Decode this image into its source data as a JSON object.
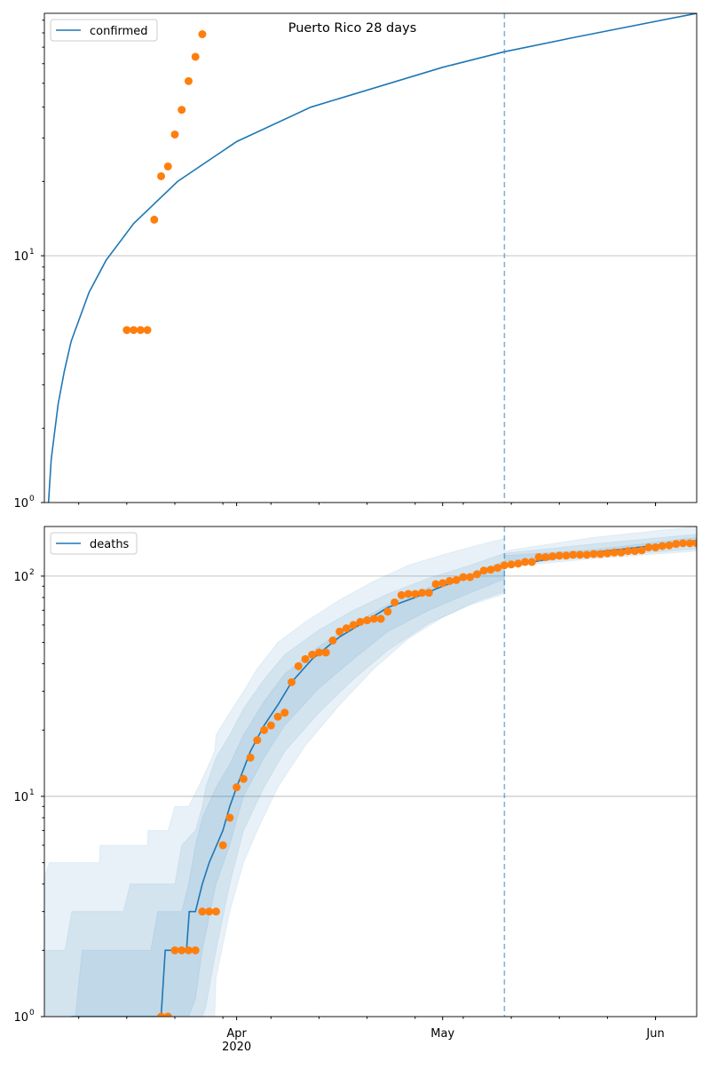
{
  "chart_data": [
    {
      "type": "scatter",
      "title": "Puerto Rico 28 days",
      "yscale": "log",
      "ylim": [
        1,
        96
      ],
      "xlim_dates": [
        "2020-03-04",
        "2020-06-07"
      ],
      "start_date": "2020-03-04",
      "x_ticks": [
        {
          "label": "Apr",
          "day": 28
        },
        {
          "label": "May",
          "day": 58
        },
        {
          "label": "Jun",
          "day": 89
        }
      ],
      "y_ticks": [
        {
          "label": "10",
          "sup": "0",
          "value": 1
        },
        {
          "label": "10",
          "sup": "1",
          "value": 10
        }
      ],
      "grid": "y-major",
      "legend": {
        "entries": [
          "confirmed"
        ],
        "placement": "top-left"
      },
      "forecast_start_day": 67,
      "model_line": {
        "name": "confirmed",
        "color": "#1f77b4",
        "points": [
          [
            0.6,
            1
          ],
          [
            1,
            1.5
          ],
          [
            2,
            2.5
          ],
          [
            2.9,
            3.4
          ],
          [
            3.9,
            4.5
          ],
          [
            6.5,
            7.1
          ],
          [
            9,
            9.6
          ],
          [
            13,
            13.5
          ],
          [
            19.4,
            20
          ],
          [
            28,
            29
          ],
          [
            38.8,
            40
          ],
          [
            58,
            58
          ],
          [
            66.9,
            67
          ],
          [
            77.5,
            77
          ],
          [
            95,
            96
          ]
        ]
      },
      "observed": {
        "color": "#ff7f0e",
        "first_day": 12,
        "values": [
          5,
          5,
          5,
          5,
          14,
          21,
          23,
          31,
          39,
          51,
          64,
          79
        ]
      }
    },
    {
      "type": "scatter",
      "yscale": "log",
      "ylim": [
        1,
        168
      ],
      "start_date": "2020-03-04",
      "x_ticks": [
        {
          "label": "Apr",
          "sub": "2020",
          "day": 28
        },
        {
          "label": "May",
          "day": 58
        },
        {
          "label": "Jun",
          "day": 89
        }
      ],
      "y_ticks": [
        {
          "label": "10",
          "sup": "0",
          "value": 1
        },
        {
          "label": "10",
          "sup": "1",
          "value": 10
        },
        {
          "label": "10",
          "sup": "2",
          "value": 100
        }
      ],
      "grid": "y-major",
      "legend": {
        "entries": [
          "deaths"
        ],
        "placement": "top-left"
      },
      "forecast_start_day": 67,
      "model_line": {
        "name": "deaths",
        "color": "#1f77b4",
        "points": [
          [
            3.9,
            1
          ],
          [
            17,
            1
          ],
          [
            17.6,
            2
          ],
          [
            20.7,
            2
          ],
          [
            21.1,
            3
          ],
          [
            22,
            3
          ],
          [
            23,
            4
          ],
          [
            24,
            5
          ],
          [
            26,
            7
          ],
          [
            27,
            9
          ],
          [
            28,
            11
          ],
          [
            30,
            16
          ],
          [
            32,
            21
          ],
          [
            34,
            26
          ],
          [
            36,
            33
          ],
          [
            39,
            42
          ],
          [
            43,
            53
          ],
          [
            47,
            63
          ],
          [
            50,
            72
          ],
          [
            54,
            80
          ],
          [
            58,
            90
          ],
          [
            62,
            100
          ],
          [
            67,
            110
          ],
          [
            77,
            125
          ],
          [
            95,
            145
          ]
        ]
      },
      "bands": [
        {
          "level": "outer",
          "points": [
            [
              0,
              1,
              4.3
            ],
            [
              0.7,
              1,
              5
            ],
            [
              8,
              1,
              5
            ],
            [
              8.1,
              1,
              6
            ],
            [
              15,
              1,
              6
            ],
            [
              15.1,
              1,
              7
            ],
            [
              18,
              1,
              7
            ],
            [
              19,
              1,
              9
            ],
            [
              21,
              1,
              9
            ],
            [
              23,
              1,
              12
            ],
            [
              24.8,
              1,
              16
            ],
            [
              25,
              1.5,
              19
            ],
            [
              27,
              3,
              24
            ],
            [
              29,
              5,
              30
            ],
            [
              31,
              7,
              38
            ],
            [
              34,
              11,
              50
            ],
            [
              38,
              17,
              62
            ],
            [
              43,
              26,
              78
            ],
            [
              48,
              38,
              95
            ],
            [
              53,
              52,
              112
            ],
            [
              58,
              65,
              125
            ],
            [
              63,
              77,
              138
            ],
            [
              67,
              85,
              148
            ],
            [
              67.01,
              110,
              130
            ],
            [
              80,
              120,
              150
            ],
            [
              95,
              130,
              168
            ]
          ]
        },
        {
          "level": "middle",
          "points": [
            [
              0,
              1,
              2
            ],
            [
              3,
              1,
              2
            ],
            [
              4,
              1,
              3
            ],
            [
              11.5,
              1,
              3
            ],
            [
              12.5,
              1,
              4
            ],
            [
              19,
              1,
              4
            ],
            [
              20,
              1,
              6
            ],
            [
              22,
              1,
              7
            ],
            [
              23,
              1,
              9
            ],
            [
              23.5,
              1.1,
              11
            ],
            [
              25,
              2,
              15
            ],
            [
              27,
              4,
              19
            ],
            [
              29,
              7,
              25
            ],
            [
              32,
              11,
              34
            ],
            [
              35,
              16,
              44
            ],
            [
              40,
              24,
              57
            ],
            [
              45,
              34,
              70
            ],
            [
              50,
              46,
              83
            ],
            [
              56,
              61,
              98
            ],
            [
              62,
              74,
              112
            ],
            [
              67,
              83,
              127
            ],
            [
              67.01,
              113,
              127
            ],
            [
              80,
              122,
              140
            ],
            [
              95,
              133,
              155
            ]
          ]
        },
        {
          "level": "inner",
          "points": [
            [
              4.5,
              1,
              1
            ],
            [
              5.5,
              1,
              2
            ],
            [
              15.5,
              1,
              2
            ],
            [
              16.5,
              1,
              3
            ],
            [
              20,
              1,
              3
            ],
            [
              21,
              1,
              4
            ],
            [
              22,
              1.2,
              6
            ],
            [
              23,
              2,
              8
            ],
            [
              25,
              4,
              11
            ],
            [
              27,
              6,
              14
            ],
            [
              29,
              10,
              19
            ],
            [
              32,
              15,
              27
            ],
            [
              35,
              21,
              36
            ],
            [
              40,
              31,
              48
            ],
            [
              45,
              42,
              61
            ],
            [
              50,
              56,
              74
            ],
            [
              56,
              70,
              89
            ],
            [
              62,
              84,
              102
            ],
            [
              67,
              97,
              117
            ],
            [
              67.01,
              117,
              124
            ],
            [
              80,
              125,
              132
            ],
            [
              95,
              140,
              150
            ]
          ]
        }
      ],
      "observed": {
        "color": "#ff7f0e",
        "first_day": 17,
        "values": [
          1,
          1,
          2,
          2,
          2,
          2,
          3,
          3,
          3,
          6,
          8,
          11,
          12,
          15,
          18,
          20,
          21,
          23,
          24,
          33,
          39,
          42,
          44,
          45,
          45,
          51,
          56,
          58,
          60,
          62,
          63,
          64,
          64,
          69,
          76,
          82,
          83,
          83,
          84,
          84,
          92,
          93,
          95,
          96,
          99,
          99,
          102,
          106,
          107,
          109,
          112,
          113,
          114,
          116,
          116,
          122,
          122,
          123,
          124,
          124,
          125,
          125,
          125,
          126,
          126,
          127,
          128,
          128,
          130,
          130,
          131,
          135,
          135,
          137,
          138,
          140,
          141,
          141,
          141
        ]
      }
    }
  ]
}
